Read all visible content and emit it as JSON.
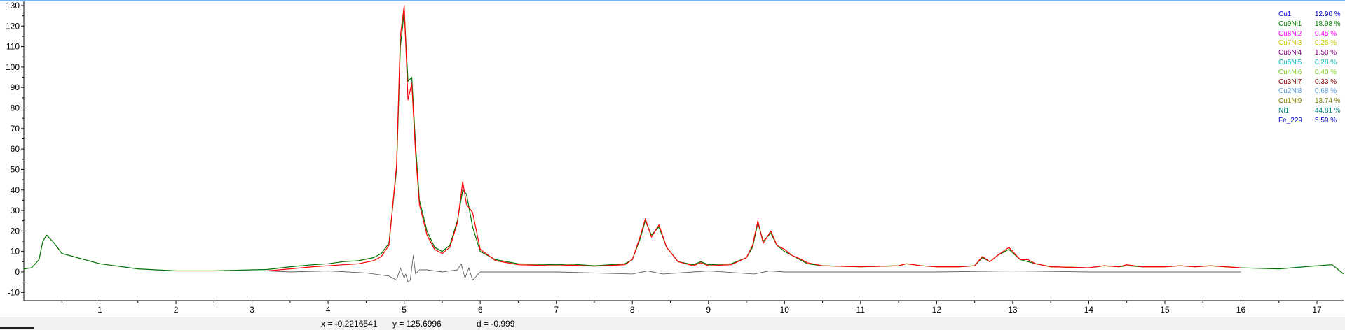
{
  "status": {
    "x_readout": "x = -0.2216541",
    "y_readout": "y = 125.6996",
    "d_readout": "d = -0.999"
  },
  "colors": {
    "observed": "#007000",
    "calculated": "#ff0000",
    "difference": "#606060",
    "axis": "#000000"
  },
  "legend": [
    {
      "name": "Cu1",
      "value": "12.90 %",
      "color": "#0000cc"
    },
    {
      "name": "Cu9Ni1",
      "value": "18.98 %",
      "color": "#008000"
    },
    {
      "name": "Cu8Ni2",
      "value": "0.45 %",
      "color": "#ff00ff"
    },
    {
      "name": "Cu7Ni3",
      "value": "0.25 %",
      "color": "#c8c800"
    },
    {
      "name": "Cu6Ni4",
      "value": "1.58 %",
      "color": "#800080"
    },
    {
      "name": "Cu5Ni5",
      "value": "0.28 %",
      "color": "#00b4b4"
    },
    {
      "name": "Cu4Ni6",
      "value": "0.40 %",
      "color": "#7ccd1c"
    },
    {
      "name": "Cu3Ni7",
      "value": "0.33 %",
      "color": "#800000"
    },
    {
      "name": "Cu2Ni8",
      "value": "0.68 %",
      "color": "#5a9bdc"
    },
    {
      "name": "Cu1Ni9",
      "value": "13.74 %",
      "color": "#808000"
    },
    {
      "name": "Ni1",
      "value": "44.81 %",
      "color": "#008080"
    },
    {
      "name": "Fe_229",
      "value": "5.59 %",
      "color": "#0000cc"
    }
  ],
  "chart_data": {
    "type": "line",
    "title": "",
    "xlabel": "",
    "ylabel": "",
    "xlim": [
      0,
      17.35
    ],
    "ylim": [
      -14,
      130
    ],
    "xticks": [
      1,
      2,
      3,
      4,
      5,
      6,
      7,
      8,
      9,
      10,
      11,
      12,
      13,
      14,
      15,
      16,
      17
    ],
    "yticks": [
      -10,
      0,
      10,
      20,
      30,
      40,
      50,
      60,
      70,
      80,
      90,
      100,
      110,
      120,
      130
    ],
    "grid": false,
    "legend_position": "top-right",
    "series": [
      {
        "key": "observed",
        "x": [
          0.0,
          0.1,
          0.2,
          0.25,
          0.3,
          0.4,
          0.5,
          0.6,
          0.8,
          1.0,
          1.5,
          2.0,
          2.5,
          3.0,
          3.2,
          3.5,
          3.8,
          4.0,
          4.2,
          4.4,
          4.6,
          4.7,
          4.8,
          4.9,
          4.95,
          5.0,
          5.05,
          5.1,
          5.15,
          5.2,
          5.3,
          5.4,
          5.5,
          5.6,
          5.7,
          5.77,
          5.82,
          5.9,
          6.0,
          6.2,
          6.5,
          7.0,
          7.2,
          7.5,
          7.9,
          8.0,
          8.1,
          8.17,
          8.25,
          8.35,
          8.45,
          8.6,
          8.8,
          8.9,
          9.0,
          9.3,
          9.5,
          9.58,
          9.65,
          9.72,
          9.82,
          9.9,
          10.0,
          10.1,
          10.2,
          10.3,
          10.5,
          11.0,
          11.5,
          11.6,
          11.8,
          12.0,
          12.3,
          12.5,
          12.6,
          12.7,
          12.8,
          12.95,
          13.1,
          13.2,
          13.3,
          13.5,
          14.0,
          14.2,
          14.4,
          14.5,
          14.7,
          15.0,
          15.2,
          15.4,
          15.6,
          16.0,
          16.5,
          17.0,
          17.2,
          17.35
        ],
        "y": [
          1.5,
          2,
          6,
          15,
          18,
          14,
          9,
          8,
          6,
          4,
          1.5,
          0.5,
          0.5,
          1,
          1.2,
          2.5,
          3.5,
          4,
          5,
          5.5,
          7,
          9,
          14,
          50,
          110,
          127,
          93,
          95,
          62,
          35,
          20,
          12,
          10,
          13,
          25,
          40,
          38,
          22,
          10,
          6,
          4,
          3.5,
          3.8,
          3,
          4,
          6,
          16,
          25,
          18,
          22,
          12,
          5,
          3.5,
          5,
          3.5,
          4,
          7,
          12,
          24,
          15,
          19,
          13,
          10,
          8,
          6,
          4,
          3,
          2.5,
          3,
          4,
          3,
          2.5,
          2.5,
          3,
          7,
          5,
          8,
          11,
          6,
          5,
          4,
          2.5,
          2,
          3,
          2.5,
          3,
          2.5,
          2.5,
          3,
          2.5,
          3,
          2,
          1.5,
          3,
          3.5,
          -1
        ]
      },
      {
        "key": "calculated",
        "x": [
          3.2,
          3.5,
          3.8,
          4.0,
          4.2,
          4.4,
          4.6,
          4.7,
          4.8,
          4.9,
          4.95,
          5.0,
          5.05,
          5.1,
          5.15,
          5.2,
          5.3,
          5.4,
          5.5,
          5.6,
          5.7,
          5.77,
          5.82,
          5.9,
          6.0,
          6.2,
          6.5,
          7.0,
          7.2,
          7.5,
          7.9,
          8.0,
          8.1,
          8.17,
          8.25,
          8.35,
          8.45,
          8.6,
          8.8,
          8.9,
          9.0,
          9.3,
          9.5,
          9.58,
          9.65,
          9.72,
          9.82,
          9.9,
          10.0,
          10.1,
          10.2,
          10.3,
          10.5,
          11.0,
          11.5,
          11.6,
          11.8,
          12.0,
          12.3,
          12.5,
          12.6,
          12.7,
          12.8,
          12.95,
          13.1,
          13.2,
          13.3,
          13.5,
          14.0,
          14.2,
          14.4,
          14.5,
          14.7,
          15.0,
          15.2,
          15.4,
          15.6,
          16.0
        ],
        "y": [
          0.5,
          1.5,
          2.5,
          3,
          3.5,
          4,
          5.5,
          7.5,
          13,
          52,
          115,
          130,
          84,
          92,
          58,
          33,
          18,
          11,
          9,
          12,
          24,
          44,
          33,
          29,
          11,
          5.5,
          3.5,
          3,
          3.3,
          2.8,
          3.5,
          6,
          17,
          26,
          17,
          23,
          12,
          5,
          3,
          4.5,
          3,
          3.5,
          7,
          13,
          25,
          14,
          20,
          13,
          11,
          8,
          6.5,
          4.5,
          3,
          2.5,
          3,
          4,
          3,
          2.5,
          2.5,
          3,
          7.5,
          5,
          8,
          12,
          6,
          6,
          4,
          2.5,
          2,
          3,
          2.5,
          3.5,
          2.5,
          2.5,
          3,
          2.5,
          3,
          2
        ]
      },
      {
        "key": "difference",
        "x": [
          3.2,
          3.5,
          4.0,
          4.5,
          4.8,
          4.9,
          4.95,
          5.0,
          5.02,
          5.05,
          5.08,
          5.12,
          5.15,
          5.2,
          5.3,
          5.5,
          5.7,
          5.75,
          5.8,
          5.85,
          5.9,
          6.0,
          6.5,
          7.0,
          8.0,
          8.2,
          8.4,
          9.0,
          9.6,
          9.8,
          10.0,
          11.0,
          12.0,
          13.0,
          14.0,
          15.0,
          16.0
        ],
        "y": [
          0.5,
          0,
          0.5,
          -0.5,
          -2,
          -4,
          2,
          -3,
          -1,
          -5,
          -4,
          8,
          -1,
          1,
          1,
          0,
          1,
          4,
          -3,
          2,
          -4,
          0,
          0,
          0,
          -1,
          0.5,
          -1,
          0.5,
          -1,
          0.5,
          0,
          0,
          0,
          0.5,
          0,
          0,
          0
        ]
      }
    ]
  }
}
